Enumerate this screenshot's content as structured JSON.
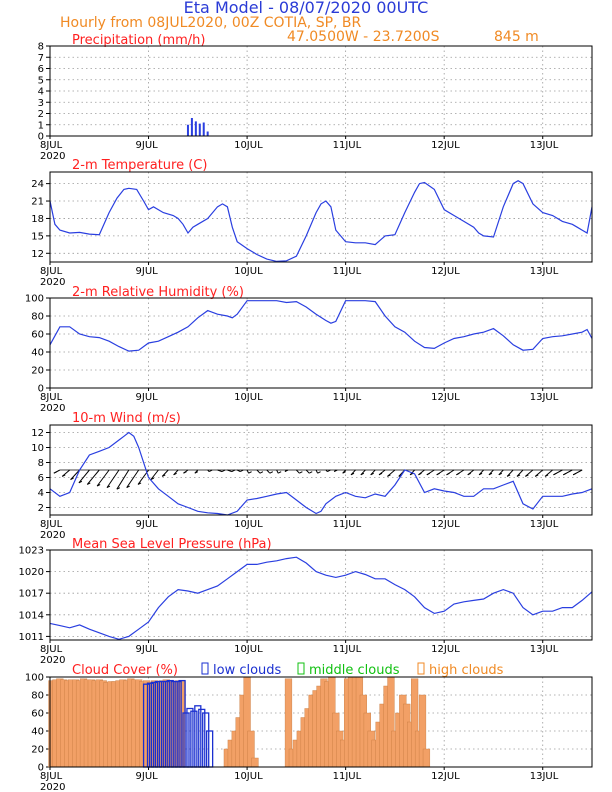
{
  "header": {
    "title": "Eta Model - 08/07/2020 00UTC",
    "subtitle": "Hourly from 08JUL2020, 00Z   COTIA, SP, BR",
    "location": "47.0500W - 23.7200S",
    "elevation": "845  m"
  },
  "colors": {
    "title": "#2a3bd6",
    "subtitle": "#f08a24",
    "panel_title": "#ff2020",
    "line": "#2a3fe0",
    "cloud_high": "#f2a066",
    "cloud_low": "#1a2fd0",
    "cloud_mid": "#10c010",
    "wind": "#000000"
  },
  "x_axis": {
    "first_label": "8JUL",
    "year_label": "2020",
    "labels": [
      "8JUL",
      "9JUL",
      "10JUL",
      "11JUL",
      "12JUL",
      "13JUL"
    ],
    "days": [
      0,
      1,
      2,
      3,
      4,
      5
    ],
    "range_days": [
      0,
      5.5
    ]
  },
  "chart_data": [
    {
      "type": "bar",
      "title": "Precipitation (mm/h)",
      "ylim": [
        0,
        8
      ],
      "yticks": [
        "0",
        "1",
        "2",
        "3",
        "4",
        "5",
        "6",
        "7",
        "8"
      ],
      "ytick_values": [
        0,
        1,
        2,
        3,
        4,
        5,
        6,
        7,
        8
      ],
      "x_days": [
        1.4,
        1.44,
        1.48,
        1.52,
        1.56,
        1.6
      ],
      "values": [
        1.0,
        1.6,
        1.3,
        1.1,
        1.2,
        0.4
      ]
    },
    {
      "type": "line",
      "title": "2-m Temperature (C)",
      "ylim": [
        10.5,
        26
      ],
      "yticks": [
        "12",
        "15",
        "18",
        "21",
        "24"
      ],
      "ytick_values": [
        12,
        15,
        18,
        21,
        24
      ],
      "x_days": [
        0,
        0.05,
        0.1,
        0.2,
        0.3,
        0.4,
        0.5,
        0.6,
        0.68,
        0.75,
        0.8,
        0.88,
        0.95,
        1.0,
        1.05,
        1.15,
        1.25,
        1.3,
        1.35,
        1.4,
        1.45,
        1.5,
        1.6,
        1.7,
        1.75,
        1.8,
        1.85,
        1.9,
        2.0,
        2.1,
        2.2,
        2.3,
        2.4,
        2.5,
        2.6,
        2.7,
        2.75,
        2.8,
        2.85,
        2.9,
        3.0,
        3.1,
        3.2,
        3.3,
        3.4,
        3.5,
        3.6,
        3.7,
        3.75,
        3.8,
        3.9,
        4.0,
        4.1,
        4.2,
        4.3,
        4.35,
        4.4,
        4.5,
        4.6,
        4.7,
        4.75,
        4.8,
        4.9,
        5.0,
        5.1,
        5.2,
        5.3,
        5.35,
        5.4,
        5.45,
        5.5
      ],
      "values": [
        21,
        17,
        16,
        15.5,
        15.6,
        15.3,
        15.2,
        19,
        21.5,
        23,
        23.2,
        23,
        21,
        19.5,
        20,
        19,
        18.5,
        18,
        17,
        15.5,
        16.5,
        17,
        18,
        20,
        20.5,
        20,
        16.5,
        14,
        12.8,
        11.8,
        11.0,
        10.6,
        10.7,
        11.5,
        15,
        19,
        20.5,
        21,
        20,
        16,
        14,
        13.8,
        13.8,
        13.5,
        15,
        15.2,
        19,
        22.5,
        24,
        24.2,
        23,
        19.5,
        18.5,
        17.5,
        16.5,
        15.5,
        15,
        14.8,
        20,
        24,
        24.5,
        24,
        20.5,
        19,
        18.5,
        17.5,
        17,
        16.5,
        16,
        15.5,
        20
      ]
    },
    {
      "type": "line",
      "title": "2-m Relative Humidity (%)",
      "ylim": [
        0,
        100
      ],
      "yticks": [
        "0",
        "20",
        "40",
        "60",
        "80",
        "100"
      ],
      "ytick_values": [
        0,
        20,
        40,
        60,
        80,
        100
      ],
      "x_days": [
        0,
        0.1,
        0.2,
        0.3,
        0.4,
        0.5,
        0.6,
        0.7,
        0.8,
        0.9,
        1.0,
        1.1,
        1.2,
        1.3,
        1.4,
        1.5,
        1.6,
        1.7,
        1.8,
        1.85,
        1.9,
        2.0,
        2.1,
        2.2,
        2.3,
        2.4,
        2.5,
        2.6,
        2.7,
        2.8,
        2.85,
        2.9,
        3.0,
        3.1,
        3.2,
        3.3,
        3.4,
        3.5,
        3.6,
        3.7,
        3.8,
        3.9,
        4.0,
        4.1,
        4.2,
        4.3,
        4.4,
        4.5,
        4.6,
        4.7,
        4.8,
        4.9,
        5.0,
        5.1,
        5.2,
        5.3,
        5.4,
        5.45,
        5.5
      ],
      "values": [
        48,
        68,
        68,
        60,
        57,
        56,
        52,
        46,
        41,
        42,
        50,
        52,
        57,
        62,
        68,
        78,
        86,
        82,
        80,
        78,
        82,
        97,
        97,
        97,
        97,
        95,
        96,
        90,
        82,
        75,
        72,
        74,
        97,
        97,
        97,
        96,
        80,
        68,
        62,
        52,
        45,
        44,
        50,
        55,
        57,
        60,
        62,
        66,
        58,
        48,
        42,
        43,
        55,
        57,
        58,
        60,
        62,
        65,
        55
      ]
    },
    {
      "type": "line",
      "title": "10-m Wind (m/s)",
      "ylim": [
        1,
        13
      ],
      "yticks": [
        "2",
        "4",
        "6",
        "8",
        "10",
        "12"
      ],
      "ytick_values": [
        2,
        4,
        6,
        8,
        10,
        12
      ],
      "x_days": [
        0,
        0.1,
        0.2,
        0.3,
        0.4,
        0.5,
        0.6,
        0.7,
        0.75,
        0.8,
        0.85,
        0.9,
        1.0,
        1.1,
        1.2,
        1.3,
        1.4,
        1.5,
        1.6,
        1.7,
        1.8,
        1.9,
        2.0,
        2.1,
        2.2,
        2.3,
        2.4,
        2.5,
        2.6,
        2.7,
        2.75,
        2.8,
        2.9,
        3.0,
        3.1,
        3.2,
        3.3,
        3.4,
        3.5,
        3.6,
        3.7,
        3.8,
        3.9,
        4.0,
        4.1,
        4.2,
        4.3,
        4.4,
        4.5,
        4.6,
        4.7,
        4.8,
        4.9,
        5.0,
        5.1,
        5.2,
        5.3,
        5.4,
        5.5
      ],
      "values": [
        4.5,
        3.5,
        4,
        7,
        9,
        9.5,
        10,
        11,
        11.5,
        12,
        11.5,
        10,
        6,
        4.5,
        3.5,
        2.5,
        2,
        1.5,
        1.3,
        1.2,
        1.0,
        1.5,
        3,
        3.2,
        3.5,
        3.8,
        4,
        3,
        2,
        1.2,
        1.5,
        2.5,
        3.5,
        4,
        3.5,
        3.3,
        3.8,
        3.5,
        5,
        7,
        6.5,
        4,
        4.5,
        4.2,
        4,
        3.5,
        3.5,
        4.5,
        4.5,
        5,
        5.5,
        2.5,
        1.8,
        3.5,
        3.5,
        3.5,
        3.8,
        4,
        4.5
      ],
      "barb_days": [
        0.1,
        0.2,
        0.3,
        0.4,
        0.5,
        0.6,
        0.7,
        0.8,
        0.9,
        1.0,
        1.1,
        1.2,
        1.3,
        1.4,
        1.5,
        1.6,
        1.7,
        1.8,
        1.9,
        2.0,
        2.1,
        2.2,
        2.3,
        2.4,
        2.5,
        2.6,
        2.7,
        2.8,
        2.9,
        3.0,
        3.1,
        3.2,
        3.3,
        3.4,
        3.5,
        3.6,
        3.7,
        3.8,
        3.9,
        4.0,
        4.1,
        4.2,
        4.3,
        4.4,
        4.5,
        4.6,
        4.7,
        4.8,
        4.9,
        5.0,
        5.1,
        5.2,
        5.3,
        5.4
      ],
      "barb_dx": [
        -4,
        -5,
        -6,
        -7,
        -8,
        -8,
        -8,
        -8,
        -8,
        -7,
        -5,
        -4,
        -3,
        -3,
        -2,
        1,
        3,
        3,
        2,
        1,
        2,
        2,
        1,
        -1,
        2,
        2,
        1,
        1,
        -1,
        -2,
        -3,
        -3,
        -3,
        -4,
        -5,
        -4,
        -3,
        -4,
        -5,
        -5,
        -5,
        -5,
        -4,
        -3,
        -3,
        -3,
        -4,
        -4,
        -5,
        -5,
        -5,
        -6,
        -6,
        -6
      ],
      "barb_dy": [
        2,
        4,
        6,
        8,
        9,
        10,
        11,
        12,
        11,
        9,
        6,
        4,
        3,
        2,
        2,
        1,
        1,
        1,
        1,
        2,
        2,
        2,
        2,
        1,
        2,
        2,
        2,
        1,
        1,
        2,
        3,
        3,
        3,
        3,
        4,
        4,
        3,
        3,
        3,
        3,
        3,
        3,
        3,
        3,
        3,
        3,
        4,
        4,
        4,
        4,
        4,
        3,
        3,
        3
      ]
    },
    {
      "type": "line",
      "title": "Mean Sea Level Pressure (hPa)",
      "ylim": [
        1010.5,
        1023
      ],
      "yticks": [
        "1011",
        "1014",
        "1017",
        "1020",
        "1023"
      ],
      "ytick_values": [
        1011,
        1014,
        1017,
        1020,
        1023
      ],
      "x_days": [
        0,
        0.1,
        0.2,
        0.3,
        0.4,
        0.5,
        0.6,
        0.7,
        0.8,
        0.9,
        1.0,
        1.1,
        1.2,
        1.3,
        1.4,
        1.5,
        1.6,
        1.7,
        1.8,
        1.9,
        2.0,
        2.1,
        2.2,
        2.3,
        2.4,
        2.5,
        2.6,
        2.7,
        2.8,
        2.9,
        3.0,
        3.1,
        3.2,
        3.3,
        3.4,
        3.5,
        3.6,
        3.7,
        3.8,
        3.9,
        4.0,
        4.1,
        4.2,
        4.3,
        4.4,
        4.5,
        4.6,
        4.7,
        4.8,
        4.9,
        5.0,
        5.1,
        5.2,
        5.3,
        5.4,
        5.5
      ],
      "values": [
        1012.8,
        1012.5,
        1012.2,
        1012.6,
        1012.0,
        1011.5,
        1011.0,
        1010.6,
        1011.0,
        1012.0,
        1013.0,
        1015.0,
        1016.5,
        1017.5,
        1017.3,
        1017.0,
        1017.5,
        1018.0,
        1019.0,
        1020.0,
        1021.0,
        1021.0,
        1021.3,
        1021.5,
        1021.8,
        1022.0,
        1021.2,
        1020.0,
        1019.5,
        1019.2,
        1019.5,
        1020.0,
        1019.6,
        1019.0,
        1019.0,
        1018.2,
        1017.5,
        1016.5,
        1015.0,
        1014.2,
        1014.5,
        1015.5,
        1015.8,
        1016.0,
        1016.2,
        1017.0,
        1017.5,
        1017.0,
        1015.0,
        1014.0,
        1014.5,
        1014.5,
        1015.0,
        1015.0,
        1016.0,
        1017.2
      ]
    },
    {
      "type": "bar",
      "title": "Cloud Cover (%)",
      "ylim": [
        0,
        100
      ],
      "yticks": [
        "0",
        "20",
        "40",
        "60",
        "80",
        "100"
      ],
      "ytick_values": [
        0,
        20,
        40,
        60,
        80,
        100
      ],
      "legend": [
        "low clouds",
        "middle clouds",
        "high clouds"
      ],
      "high_days": [
        0.02,
        0.06,
        0.1,
        0.14,
        0.18,
        0.22,
        0.26,
        0.3,
        0.34,
        0.38,
        0.42,
        0.46,
        0.5,
        0.54,
        0.58,
        0.62,
        0.66,
        0.7,
        0.74,
        0.78,
        0.82,
        0.86,
        0.9,
        0.94,
        0.98,
        1.02,
        1.06,
        1.1,
        1.14,
        1.18,
        1.22,
        1.26,
        1.3,
        1.34,
        1.8,
        1.84,
        1.88,
        1.92,
        1.96,
        2.0,
        2.04,
        2.08,
        2.42,
        2.46,
        2.5,
        2.54,
        2.58,
        2.62,
        2.66,
        2.7,
        2.74,
        2.78,
        2.82,
        2.86,
        2.9,
        2.94,
        2.98,
        3.02,
        3.06,
        3.1,
        3.14,
        3.18,
        3.22,
        3.26,
        3.3,
        3.34,
        3.38,
        3.42,
        3.46,
        3.5,
        3.54,
        3.58,
        3.62,
        3.66,
        3.7,
        3.74,
        3.78,
        3.82
      ],
      "high_values": [
        96,
        97,
        98,
        97,
        96,
        97,
        97,
        96,
        98,
        97,
        97,
        96,
        97,
        96,
        94,
        95,
        95,
        96,
        97,
        96,
        98,
        97,
        97,
        95,
        96,
        94,
        96,
        95,
        96,
        97,
        96,
        95,
        96,
        95,
        20,
        30,
        40,
        55,
        80,
        100,
        40,
        10,
        98,
        20,
        30,
        40,
        55,
        65,
        80,
        85,
        90,
        98,
        95,
        100,
        60,
        40,
        30,
        98,
        100,
        100,
        100,
        80,
        60,
        40,
        30,
        50,
        70,
        90,
        100,
        40,
        60,
        80,
        70,
        50,
        98,
        40,
        80,
        20
      ],
      "low_days": [
        0.98,
        1.02,
        1.06,
        1.1,
        1.14,
        1.18,
        1.22,
        1.26,
        1.3,
        1.34,
        1.38,
        1.42,
        1.46,
        1.5,
        1.54,
        1.58,
        1.62
      ],
      "low_values": [
        92,
        93,
        94,
        95,
        95,
        95,
        96,
        95,
        95,
        96,
        60,
        65,
        62,
        68,
        64,
        60,
        40
      ]
    }
  ]
}
